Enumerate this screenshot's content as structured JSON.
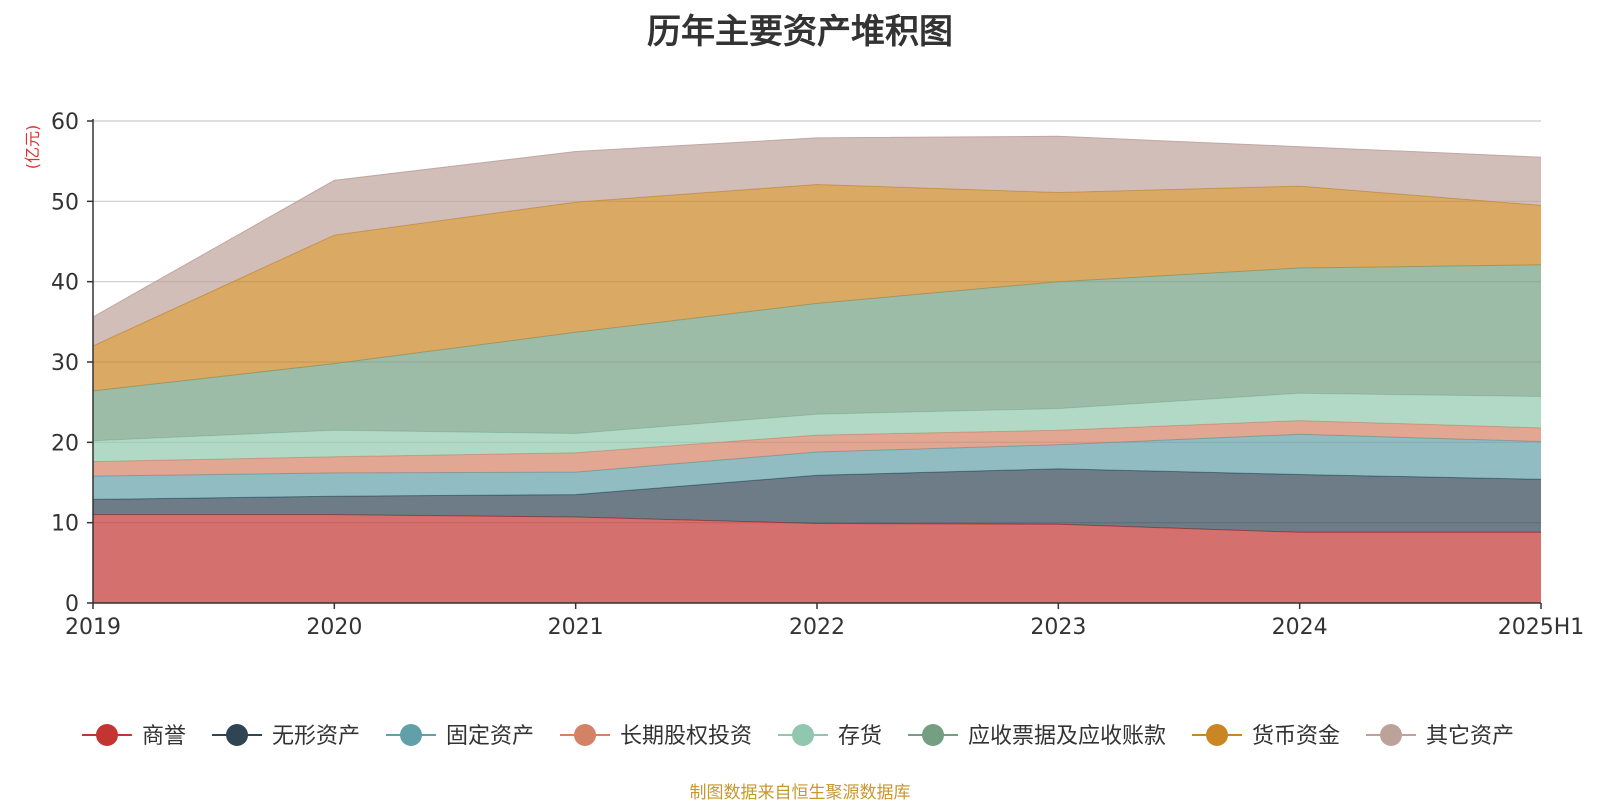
{
  "chart_data": {
    "type": "area",
    "stacked": true,
    "title": "历年主要资产堆积图",
    "unit": "(亿元)",
    "source": "制图数据来自恒生聚源数据库",
    "categories": [
      "2019",
      "2020",
      "2021",
      "2022",
      "2023",
      "2024",
      "2025H1"
    ],
    "ylim": [
      0,
      60
    ],
    "yticks": [
      "0",
      "10",
      "20",
      "30",
      "40",
      "50",
      "60"
    ],
    "grid": true,
    "legend_position": "bottom",
    "series": [
      {
        "name": "商誉",
        "color": "#c23531",
        "values": [
          11.0,
          11.0,
          10.7,
          9.9,
          9.8,
          8.8,
          8.8
        ]
      },
      {
        "name": "无形资产",
        "color": "#2f4554",
        "values": [
          1.9,
          2.3,
          2.8,
          6.0,
          6.9,
          7.2,
          6.6
        ]
      },
      {
        "name": "固定资产",
        "color": "#61a0a8",
        "values": [
          2.9,
          2.9,
          2.8,
          2.9,
          3.0,
          5.0,
          4.7
        ]
      },
      {
        "name": "长期股权投资",
        "color": "#d48265",
        "values": [
          1.8,
          2.0,
          2.4,
          2.1,
          1.8,
          1.7,
          1.7
        ]
      },
      {
        "name": "存货",
        "color": "#91c7ae",
        "values": [
          2.6,
          3.3,
          2.4,
          2.6,
          2.7,
          3.4,
          3.9
        ]
      },
      {
        "name": "应收票据及应收账款",
        "color": "#749f83",
        "values": [
          6.2,
          8.3,
          12.6,
          13.8,
          15.8,
          15.6,
          16.4
        ]
      },
      {
        "name": "货币资金",
        "color": "#ca8622",
        "values": [
          5.6,
          16.0,
          16.2,
          14.8,
          11.1,
          10.2,
          7.4
        ]
      },
      {
        "name": "其它资产",
        "color": "#bda29a",
        "values": [
          3.6,
          6.8,
          6.3,
          5.8,
          7.0,
          4.9,
          6.0
        ]
      }
    ]
  },
  "colors": {
    "title": "#333333",
    "unit": "#e03030",
    "source": "#c8982e",
    "axis": "#333333",
    "grid": "#cccccc"
  }
}
